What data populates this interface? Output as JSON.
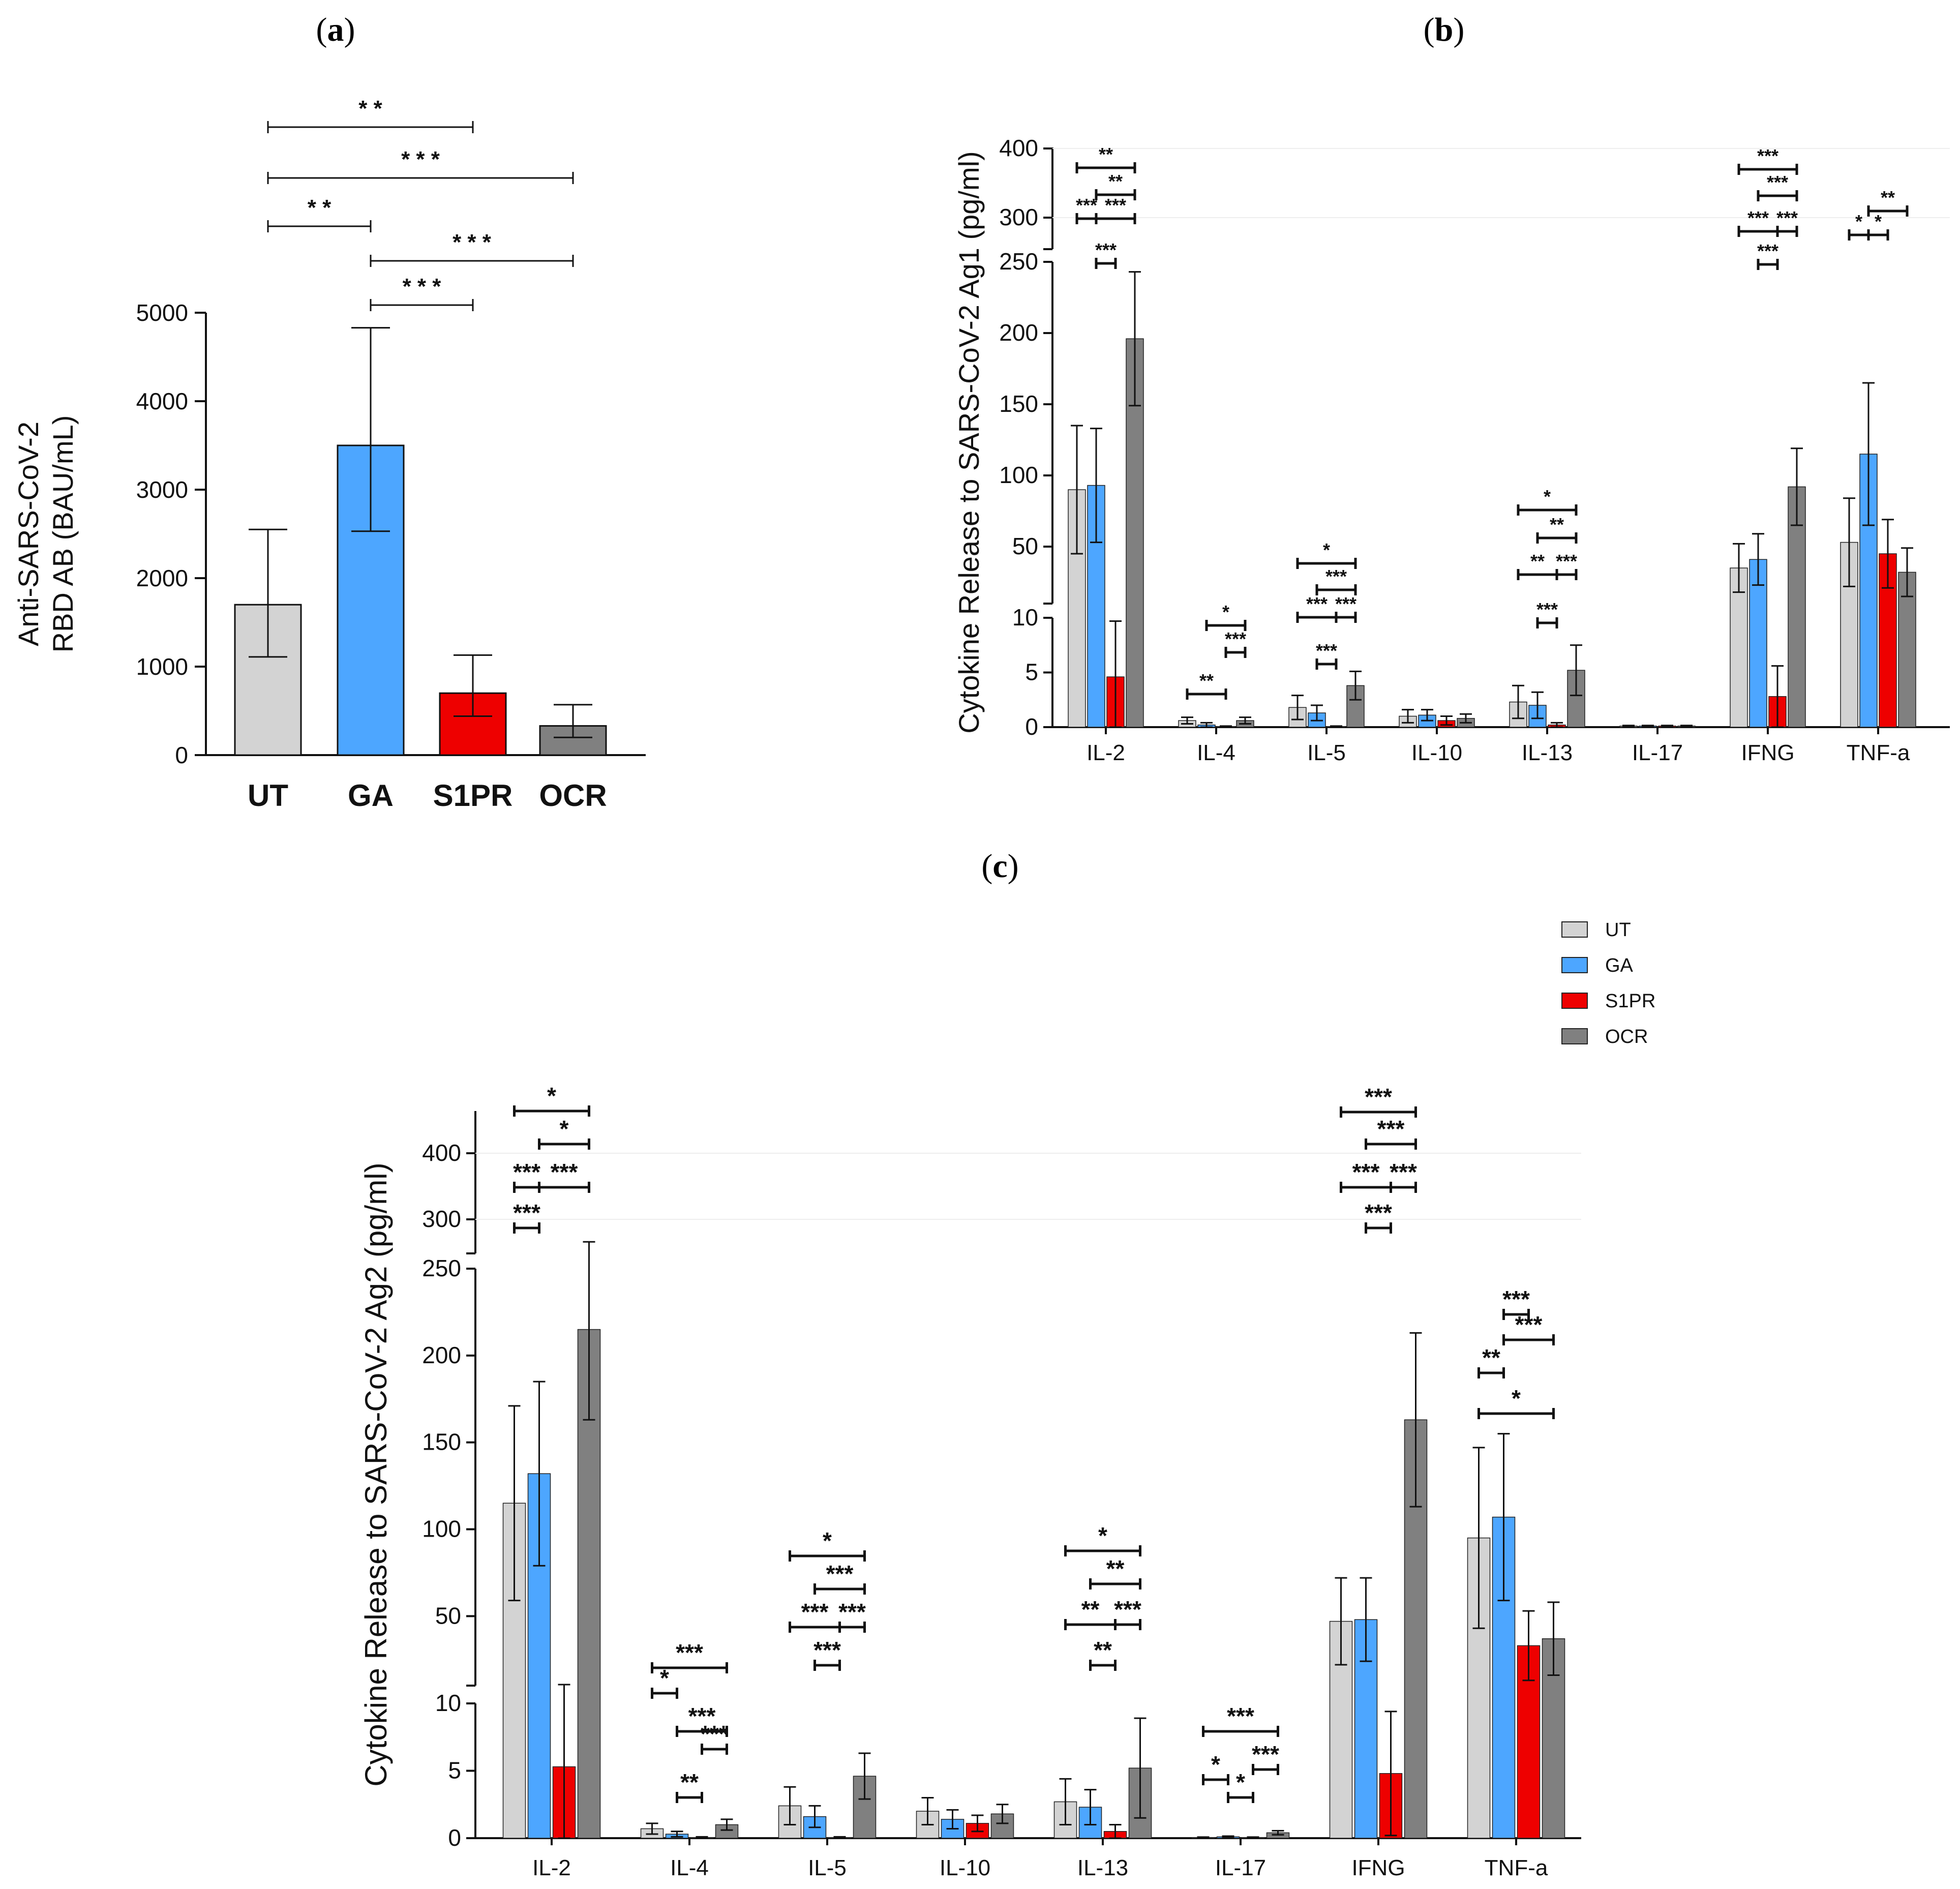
{
  "panels": {
    "a": "a",
    "b": "b",
    "c": "c"
  },
  "colors": {
    "UT": "#d3d3d3",
    "GA": "#4da6ff",
    "S1PR": "#ee0000",
    "OCR": "#808080"
  },
  "legend": [
    "UT",
    "GA",
    "S1PR",
    "OCR"
  ],
  "chart_data": [
    {
      "id": "a",
      "type": "bar",
      "title": "",
      "ylabel_line1": "Anti-SARS-CoV-2",
      "ylabel_line2": "RBD AB (BAU/mL)",
      "categories": [
        "UT",
        "GA",
        "S1PR",
        "OCR"
      ],
      "values": [
        1700,
        3500,
        700,
        330
      ],
      "err_low": [
        1110,
        2530,
        440,
        200
      ],
      "err_high": [
        2550,
        4830,
        1130,
        570
      ],
      "yticks": [
        0,
        1000,
        2000,
        3000,
        4000,
        5000
      ],
      "ylim": [
        0,
        5000
      ],
      "significance": [
        {
          "from": "UT",
          "to": "S1PR",
          "label": "* *"
        },
        {
          "from": "UT",
          "to": "OCR",
          "label": "* * *"
        },
        {
          "from": "UT",
          "to": "GA",
          "label": "* *"
        },
        {
          "from": "GA",
          "to": "OCR",
          "label": "* * *"
        },
        {
          "from": "GA",
          "to": "S1PR",
          "label": "* * *"
        }
      ]
    },
    {
      "id": "b",
      "type": "bar",
      "ylabel": "Cytokine Release to SARS-CoV-2 Ag1 (pg/ml)",
      "categories": [
        "IL-2",
        "IL-4",
        "IL-5",
        "IL-10",
        "IL-13",
        "IL-17",
        "IFNG",
        "TNF-a"
      ],
      "series": [
        {
          "name": "UT",
          "values": [
            90,
            0.6,
            1.8,
            1.0,
            2.3,
            0.1,
            35,
            53
          ],
          "err": [
            45,
            0.3,
            1.1,
            0.6,
            1.5,
            0.05,
            17,
            31
          ]
        },
        {
          "name": "GA",
          "values": [
            93,
            0.2,
            1.3,
            1.1,
            2.0,
            0.1,
            41,
            115
          ],
          "err": [
            40,
            0.2,
            0.7,
            0.5,
            1.2,
            0.05,
            18,
            50
          ]
        },
        {
          "name": "S1PR",
          "values": [
            4.6,
            0.05,
            0.05,
            0.6,
            0.2,
            0.1,
            2.8,
            45
          ],
          "err": [
            5.1,
            0.05,
            0.05,
            0.4,
            0.2,
            0.05,
            2.8,
            24
          ]
        },
        {
          "name": "OCR",
          "values": [
            196,
            0.6,
            3.8,
            0.8,
            5.2,
            0.1,
            92,
            32
          ],
          "err": [
            47,
            0.3,
            1.3,
            0.4,
            2.3,
            0.05,
            27,
            17
          ]
        }
      ],
      "yticks": [
        0,
        5,
        10,
        50,
        100,
        150,
        200,
        250,
        300,
        400
      ],
      "axis_breaks": [
        10,
        250
      ],
      "significance": [
        {
          "cat": "IL-2",
          "pairs": [
            [
              "UT",
              "OCR",
              "**"
            ],
            [
              "GA",
              "OCR",
              "**"
            ],
            [
              "UT",
              "GA",
              "***"
            ],
            [
              "GA",
              "OCR",
              "***"
            ],
            [
              "GA",
              "S1PR",
              "***"
            ]
          ]
        },
        {
          "cat": "IL-4",
          "pairs": [
            [
              "GA",
              "OCR",
              "*"
            ],
            [
              "S1PR",
              "OCR",
              "***"
            ],
            [
              "UT",
              "S1PR",
              "**"
            ]
          ]
        },
        {
          "cat": "IL-5",
          "pairs": [
            [
              "UT",
              "OCR",
              "*"
            ],
            [
              "GA",
              "OCR",
              "***"
            ],
            [
              "UT",
              "S1PR",
              "***"
            ],
            [
              "S1PR",
              "OCR",
              "***"
            ],
            [
              "GA",
              "S1PR",
              "***"
            ]
          ]
        },
        {
          "cat": "IL-13",
          "pairs": [
            [
              "UT",
              "OCR",
              "*"
            ],
            [
              "GA",
              "OCR",
              "**"
            ],
            [
              "UT",
              "S1PR",
              "**"
            ],
            [
              "S1PR",
              "OCR",
              "***"
            ],
            [
              "GA",
              "S1PR",
              "***"
            ]
          ]
        },
        {
          "cat": "IFNG",
          "pairs": [
            [
              "UT",
              "OCR",
              "***"
            ],
            [
              "GA",
              "OCR",
              "***"
            ],
            [
              "UT",
              "S1PR",
              "***"
            ],
            [
              "S1PR",
              "OCR",
              "***"
            ],
            [
              "GA",
              "S1PR",
              "***"
            ]
          ]
        },
        {
          "cat": "TNF-a",
          "pairs": [
            [
              "GA",
              "OCR",
              "**"
            ],
            [
              "UT",
              "GA",
              "*"
            ],
            [
              "GA",
              "S1PR",
              "*"
            ]
          ]
        }
      ]
    },
    {
      "id": "c",
      "type": "bar",
      "ylabel": "Cytokine Release to SARS-CoV-2 Ag2 (pg/ml)",
      "categories": [
        "IL-2",
        "IL-4",
        "IL-5",
        "IL-10",
        "IL-13",
        "IL-17",
        "IFNG",
        "TNF-a"
      ],
      "series": [
        {
          "name": "UT",
          "values": [
            115,
            0.7,
            2.4,
            2.0,
            2.7,
            0.05,
            47,
            95
          ],
          "err": [
            56,
            0.4,
            1.4,
            1.0,
            1.7,
            0.03,
            25,
            52
          ]
        },
        {
          "name": "GA",
          "values": [
            132,
            0.3,
            1.6,
            1.4,
            2.3,
            0.1,
            48,
            107
          ],
          "err": [
            53,
            0.2,
            0.8,
            0.7,
            1.3,
            0.05,
            24,
            48
          ]
        },
        {
          "name": "S1PR",
          "values": [
            5.3,
            0.05,
            0.05,
            1.1,
            0.5,
            0.05,
            4.8,
            33
          ],
          "err": [
            5.3,
            0.05,
            0.05,
            0.6,
            0.5,
            0.03,
            4.6,
            20
          ]
        },
        {
          "name": "OCR",
          "values": [
            215,
            1.0,
            4.6,
            1.8,
            5.2,
            0.4,
            163,
            37
          ],
          "err": [
            52,
            0.4,
            1.7,
            0.7,
            3.7,
            0.15,
            50,
            21
          ]
        }
      ],
      "yticks": [
        0,
        5,
        10,
        50,
        100,
        150,
        200,
        250,
        300,
        400
      ],
      "axis_breaks": [
        10,
        250
      ],
      "significance": [
        {
          "cat": "IL-2",
          "pairs": [
            [
              "UT",
              "OCR",
              "*"
            ],
            [
              "GA",
              "OCR",
              "*"
            ],
            [
              "UT",
              "GA",
              "***"
            ],
            [
              "GA",
              "OCR",
              "***"
            ],
            [
              "UT",
              "GA",
              "***"
            ]
          ]
        },
        {
          "cat": "IL-4",
          "pairs": [
            [
              "UT",
              "OCR",
              "***"
            ],
            [
              "UT",
              "GA",
              "*"
            ],
            [
              "GA",
              "OCR",
              "***"
            ],
            [
              "S1PR",
              "OCR",
              "***"
            ],
            [
              "GA",
              "S1PR",
              "**"
            ]
          ]
        },
        {
          "cat": "IL-5",
          "pairs": [
            [
              "UT",
              "OCR",
              "*"
            ],
            [
              "GA",
              "OCR",
              "***"
            ],
            [
              "UT",
              "S1PR",
              "***"
            ],
            [
              "S1PR",
              "OCR",
              "***"
            ],
            [
              "GA",
              "S1PR",
              "***"
            ]
          ]
        },
        {
          "cat": "IL-13",
          "pairs": [
            [
              "UT",
              "OCR",
              "*"
            ],
            [
              "GA",
              "OCR",
              "**"
            ],
            [
              "UT",
              "S1PR",
              "**"
            ],
            [
              "S1PR",
              "OCR",
              "***"
            ],
            [
              "GA",
              "S1PR",
              "**"
            ]
          ]
        },
        {
          "cat": "IL-17",
          "pairs": [
            [
              "UT",
              "OCR",
              "***"
            ],
            [
              "UT",
              "GA",
              "*"
            ],
            [
              "GA",
              "S1PR",
              "*"
            ],
            [
              "S1PR",
              "OCR",
              "***"
            ]
          ]
        },
        {
          "cat": "IFNG",
          "pairs": [
            [
              "UT",
              "OCR",
              "***"
            ],
            [
              "GA",
              "OCR",
              "***"
            ],
            [
              "UT",
              "S1PR",
              "***"
            ],
            [
              "S1PR",
              "OCR",
              "***"
            ],
            [
              "GA",
              "S1PR",
              "***"
            ]
          ]
        },
        {
          "cat": "TNF-a",
          "pairs": [
            [
              "GA",
              "S1PR",
              "***"
            ],
            [
              "GA",
              "OCR",
              "***"
            ],
            [
              "UT",
              "GA",
              "**"
            ],
            [
              "UT",
              "OCR",
              "*"
            ]
          ]
        }
      ]
    }
  ]
}
